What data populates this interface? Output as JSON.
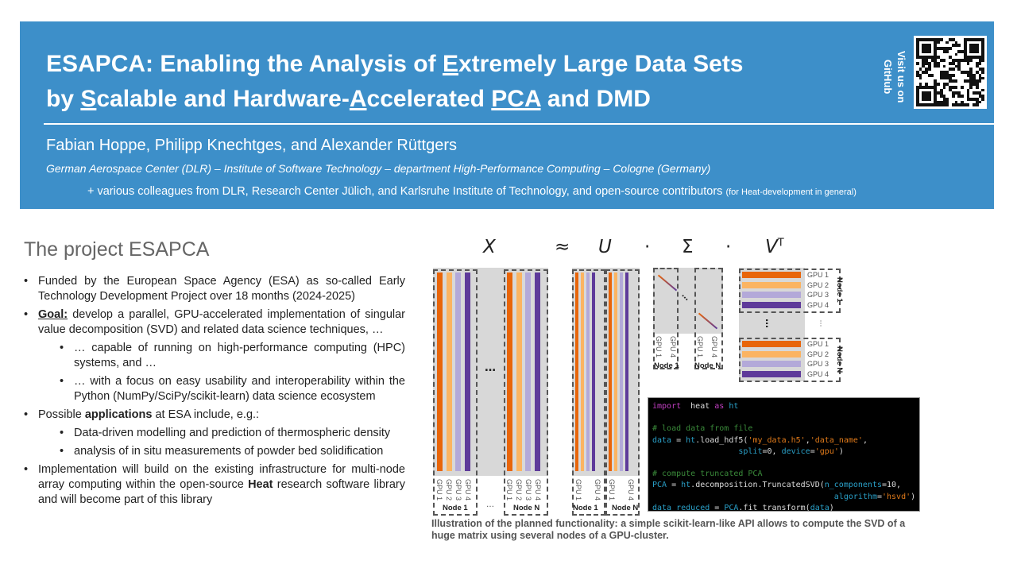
{
  "header": {
    "title_parts": [
      [
        "ESAPCA: Enabling the Analysis of ",
        false
      ],
      [
        "E",
        true
      ],
      [
        "xtremely Large Data Sets",
        false
      ],
      [
        "\nby ",
        false
      ],
      [
        "S",
        true
      ],
      [
        "calable and Hardware-",
        false
      ],
      [
        "A",
        true
      ],
      [
        "ccelerated ",
        false
      ],
      [
        "PCA",
        true
      ],
      [
        " and DMD",
        false
      ]
    ],
    "title": "ESAPCA: Enabling the Analysis of Extremely Large Data Sets by Scalable and Hardware-Accelerated PCA and DMD",
    "authors": "Fabian Hoppe, Philipp Knechtges, and Alexander Rüttgers",
    "affiliation": "German Aerospace Center (DLR) – Institute of Software Technology –  department High-Performance Computing – Cologne (Germany)",
    "colleagues": "+  various colleagues from DLR, Research Center Jülich, and Karlsruhe Institute of Technology, and open-source contributors ",
    "colleagues_note": "(for Heat-development in general)",
    "github": "Visit us on GitHub",
    "banner_color": "#3d8fc9"
  },
  "project": {
    "title": "The project ESAPCA",
    "bullets": [
      {
        "level": 0,
        "html": "Funded by the European Space Agency (ESA) as so-called Early Technology Development Project over 18 months (2024-2025)"
      },
      {
        "level": 0,
        "bold": "Goal:",
        "text": " develop a parallel, GPU-accelerated implementation of singular value decomposition (SVD) and related data science techniques, …"
      },
      {
        "level": 1,
        "html": "… capable of running on high-performance computing (HPC) systems, and …"
      },
      {
        "level": 1,
        "html": "… with a focus on easy usability and interoperability within the Python (NumPy/SciPy/scikit-learn) data science ecosystem"
      },
      {
        "level": 0,
        "pre": "Possible ",
        "bold2": "applications",
        "text": " at ESA include, e.g.:"
      },
      {
        "level": 1,
        "html": "Data-driven modelling and prediction of thermospheric density"
      },
      {
        "level": 1,
        "html": "analysis of in situ measurements of powder bed solidification"
      },
      {
        "level": 0,
        "pre": "Implementation will build on the existing infrastructure for multi-node array computing within the open-source ",
        "bold2": "Heat",
        "text": " research software library and will become part of this library"
      }
    ]
  },
  "figure": {
    "equation": {
      "x": "X",
      "approx": "≈",
      "u": "U",
      "dot": "·",
      "sigma": "Σ",
      "vt": "V",
      "vt_sup": "T"
    },
    "gpu_labels": [
      "GPU 1",
      "GPU 2",
      "GPU 3",
      "GPU 4"
    ],
    "node1": "Node 1",
    "nodeN": "Node N",
    "ellipsis": "…",
    "colors": [
      "#e8650a",
      "#fbb462",
      "#b3a9d9",
      "#5e3a9a"
    ],
    "caption": "Illustration of the planned functionality: a simple scikit-learn-like API allows to compute the SVD of a huge matrix using several nodes of a GPU-cluster."
  },
  "code": [
    [
      [
        "kw",
        "import"
      ],
      [
        "",
        "  heat "
      ],
      [
        "kw",
        "as"
      ],
      [
        "vr",
        " ht"
      ]
    ],
    [],
    [
      [
        "cm",
        "# load data from file"
      ]
    ],
    [
      [
        "vr",
        "data"
      ],
      [
        "",
        " = "
      ],
      [
        "vr",
        "ht"
      ],
      [
        "",
        ".load_hdf5("
      ],
      [
        "st",
        "'my_data.h5'"
      ],
      [
        "",
        ","
      ],
      [
        "st",
        "'data_name'"
      ],
      [
        "",
        ","
      ]
    ],
    [
      [
        "",
        "                  "
      ],
      [
        "vr",
        "split"
      ],
      [
        "",
        "=0, "
      ],
      [
        "vr",
        "device"
      ],
      [
        "",
        "="
      ],
      [
        "st",
        "'gpu'"
      ],
      [
        "",
        ")"
      ]
    ],
    [],
    [
      [
        "cm",
        "# compute truncated PCA"
      ]
    ],
    [
      [
        "vr",
        "PCA"
      ],
      [
        "",
        " = "
      ],
      [
        "vr",
        "ht"
      ],
      [
        "",
        ".decomposition.TruncatedSVD("
      ],
      [
        "vr",
        "n_components"
      ],
      [
        "",
        "=10,"
      ]
    ],
    [
      [
        "",
        "                                      "
      ],
      [
        "vr",
        "algorithm"
      ],
      [
        "",
        "="
      ],
      [
        "st",
        "'hsvd'"
      ],
      [
        "",
        ")"
      ]
    ],
    [
      [
        "vr",
        "data_reduced"
      ],
      [
        "",
        " = "
      ],
      [
        "vr",
        "PCA"
      ],
      [
        "",
        ".fit_transform("
      ],
      [
        "vr",
        "data"
      ],
      [
        "",
        ")"
      ]
    ]
  ]
}
